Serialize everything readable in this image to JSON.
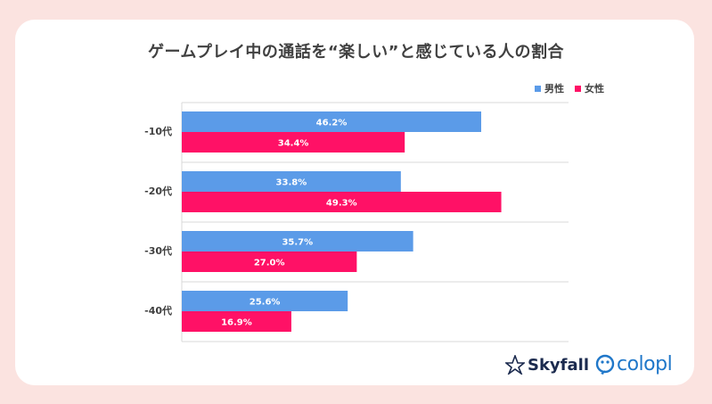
{
  "chart_data": {
    "type": "bar",
    "orientation": "horizontal",
    "title": "ゲームプレイ中の通話を“楽しい”と感じている人の割合",
    "categories": [
      "-10代",
      "-20代",
      "-30代",
      "-40代"
    ],
    "series": [
      {
        "name": "男性",
        "values": [
          46.2,
          33.8,
          35.7,
          25.6
        ],
        "labels": [
          "46.2%",
          "33.8%",
          "35.7%",
          "25.6%"
        ],
        "color": "#5b9be8"
      },
      {
        "name": "女性",
        "values": [
          34.4,
          49.3,
          27.0,
          16.9
        ],
        "labels": [
          "34.4%",
          "49.3%",
          "27.0%",
          "16.9%"
        ],
        "color": "#ff1166"
      }
    ],
    "xlim": [
      0,
      60
    ],
    "grid": true,
    "legend_position": "top-right"
  },
  "logos": {
    "skyfall": "Skyfall",
    "colopl": "colopl"
  }
}
